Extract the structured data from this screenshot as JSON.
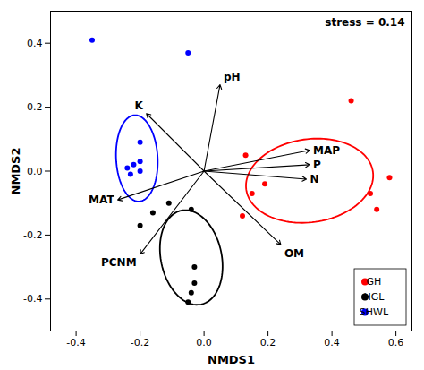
{
  "chart_data": {
    "type": "scatter",
    "xlabel": "NMDS1",
    "ylabel": "NMDS2",
    "annotation": "stress = 0.14",
    "xlim": [
      -0.48,
      0.65
    ],
    "ylim": [
      -0.5,
      0.5
    ],
    "xticks": [
      -0.4,
      -0.2,
      {
        "value": 0.0,
        "label": "0.0"
      },
      0.2,
      0.4,
      0.6
    ],
    "yticks": [
      -0.4,
      -0.2,
      {
        "value": 0.0,
        "label": "0.0"
      },
      0.2,
      0.4
    ],
    "legend": "lower right",
    "series": [
      {
        "name": "GH",
        "color": "#ff0000",
        "points": [
          [
            0.13,
            0.05
          ],
          [
            0.15,
            -0.07
          ],
          [
            0.12,
            -0.14
          ],
          [
            0.19,
            -0.04
          ],
          [
            0.46,
            0.22
          ],
          [
            0.52,
            -0.07
          ],
          [
            0.54,
            -0.12
          ],
          [
            0.58,
            -0.02
          ]
        ],
        "ellipse": {
          "cx": 0.33,
          "cy": -0.03,
          "width": 0.4,
          "height": 0.26,
          "angle": 8
        }
      },
      {
        "name": "HGL",
        "color": "#000000",
        "points": [
          [
            -0.16,
            -0.13
          ],
          [
            -0.2,
            -0.17
          ],
          [
            -0.11,
            -0.1
          ],
          [
            -0.04,
            -0.12
          ],
          [
            -0.03,
            -0.35
          ],
          [
            -0.04,
            -0.38
          ],
          [
            -0.05,
            -0.41
          ],
          [
            -0.03,
            -0.3
          ]
        ],
        "ellipse": {
          "cx": -0.04,
          "cy": -0.27,
          "width": 0.19,
          "height": 0.3,
          "angle": 12
        }
      },
      {
        "name": "SHWL",
        "color": "#0000ff",
        "points": [
          [
            -0.35,
            0.41
          ],
          [
            -0.05,
            0.37
          ],
          [
            -0.2,
            0.09
          ],
          [
            -0.2,
            0.03
          ],
          [
            -0.23,
            -0.01
          ],
          [
            -0.24,
            0.01
          ],
          [
            -0.22,
            0.02
          ],
          [
            -0.2,
            0.0
          ]
        ],
        "ellipse": {
          "cx": -0.21,
          "cy": 0.04,
          "width": 0.13,
          "height": 0.27,
          "angle": 3
        }
      }
    ],
    "arrows": [
      {
        "label": "pH",
        "dx": 0.05,
        "dy": 0.27
      },
      {
        "label": "K",
        "dx": -0.18,
        "dy": 0.18
      },
      {
        "label": "MAT",
        "dx": -0.27,
        "dy": -0.09
      },
      {
        "label": "PCNM",
        "dx": -0.2,
        "dy": -0.26
      },
      {
        "label": "OM",
        "dx": 0.24,
        "dy": -0.23
      },
      {
        "label": "MAP",
        "dx": 0.33,
        "dy": 0.065
      },
      {
        "label": "P",
        "dx": 0.33,
        "dy": 0.02
      },
      {
        "label": "N",
        "dx": 0.32,
        "dy": -0.025
      }
    ]
  }
}
